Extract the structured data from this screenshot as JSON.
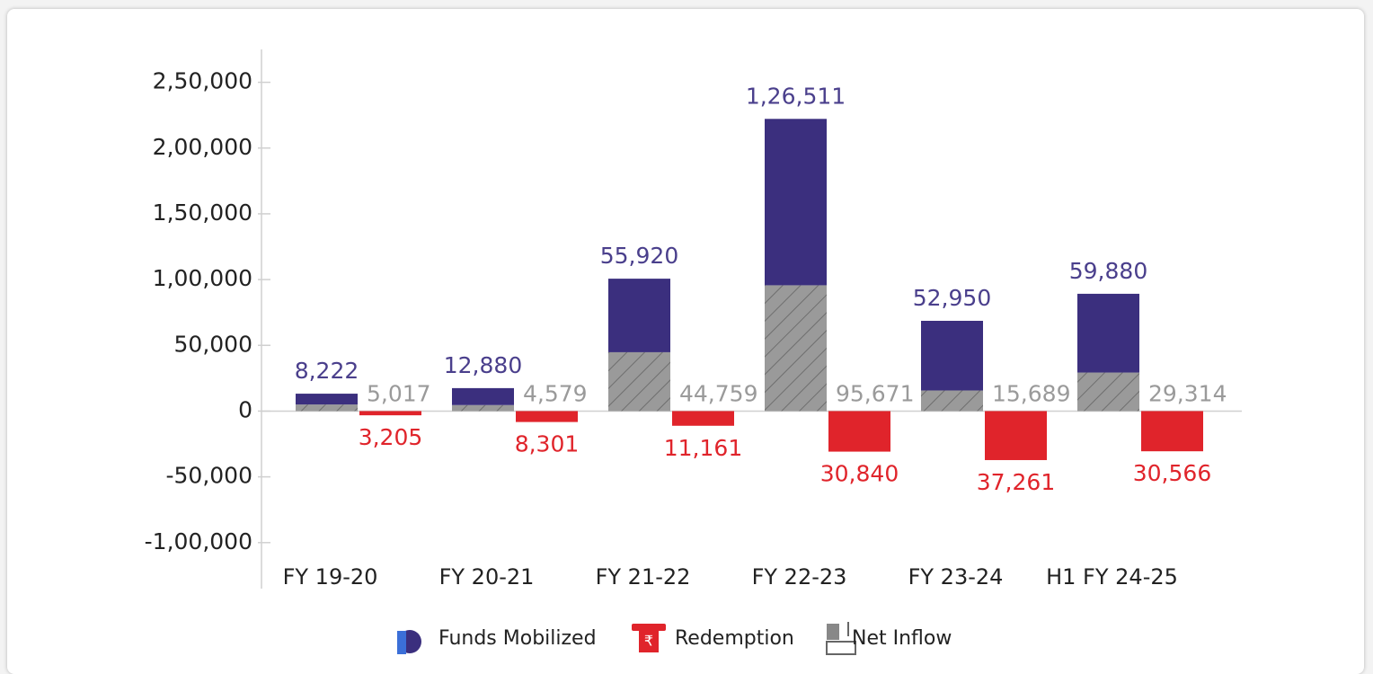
{
  "chart_data": {
    "type": "bar",
    "categories": [
      "FY 19-20",
      "FY 20-21",
      "FY 21-22",
      "FY 22-23",
      "FY 23-24",
      "H1 FY 24-25"
    ],
    "series": [
      {
        "name": "Funds Mobilized",
        "color": "#3b2f7e",
        "values": [
          8222,
          12880,
          55920,
          126511,
          52950,
          59880
        ],
        "value_labels": [
          "8,222",
          "12,880",
          "55,920",
          "1,26,511",
          "52,950",
          "59,880"
        ]
      },
      {
        "name": "Redemption",
        "color": "#e0242b",
        "values": [
          -3205,
          -8301,
          -11161,
          -30840,
          -37261,
          -30566
        ],
        "value_labels": [
          "3,205",
          "8,301",
          "11,161",
          "30,840",
          "37,261",
          "30,566"
        ]
      },
      {
        "name": "Net Inflow",
        "color": "#9a9a9a",
        "values": [
          5017,
          4579,
          44759,
          95671,
          15689,
          29314
        ],
        "value_labels": [
          "5,017",
          "4,579",
          "44,759",
          "95,671",
          "15,689",
          "29,314"
        ]
      }
    ],
    "ylim": [
      -135000,
      275000
    ],
    "yticks": [
      {
        "value": -100000,
        "label": "-1,00,000"
      },
      {
        "value": -50000,
        "label": "-50,000"
      },
      0,
      {
        "value": 50000,
        "label": "50,000"
      },
      {
        "value": 100000,
        "label": "1,00,000"
      },
      {
        "value": 150000,
        "label": "1,50,000"
      },
      {
        "value": 200000,
        "label": "2,00,000"
      },
      {
        "value": 250000,
        "label": "2,50,000"
      }
    ],
    "stacked": true,
    "legend": "bottom"
  }
}
